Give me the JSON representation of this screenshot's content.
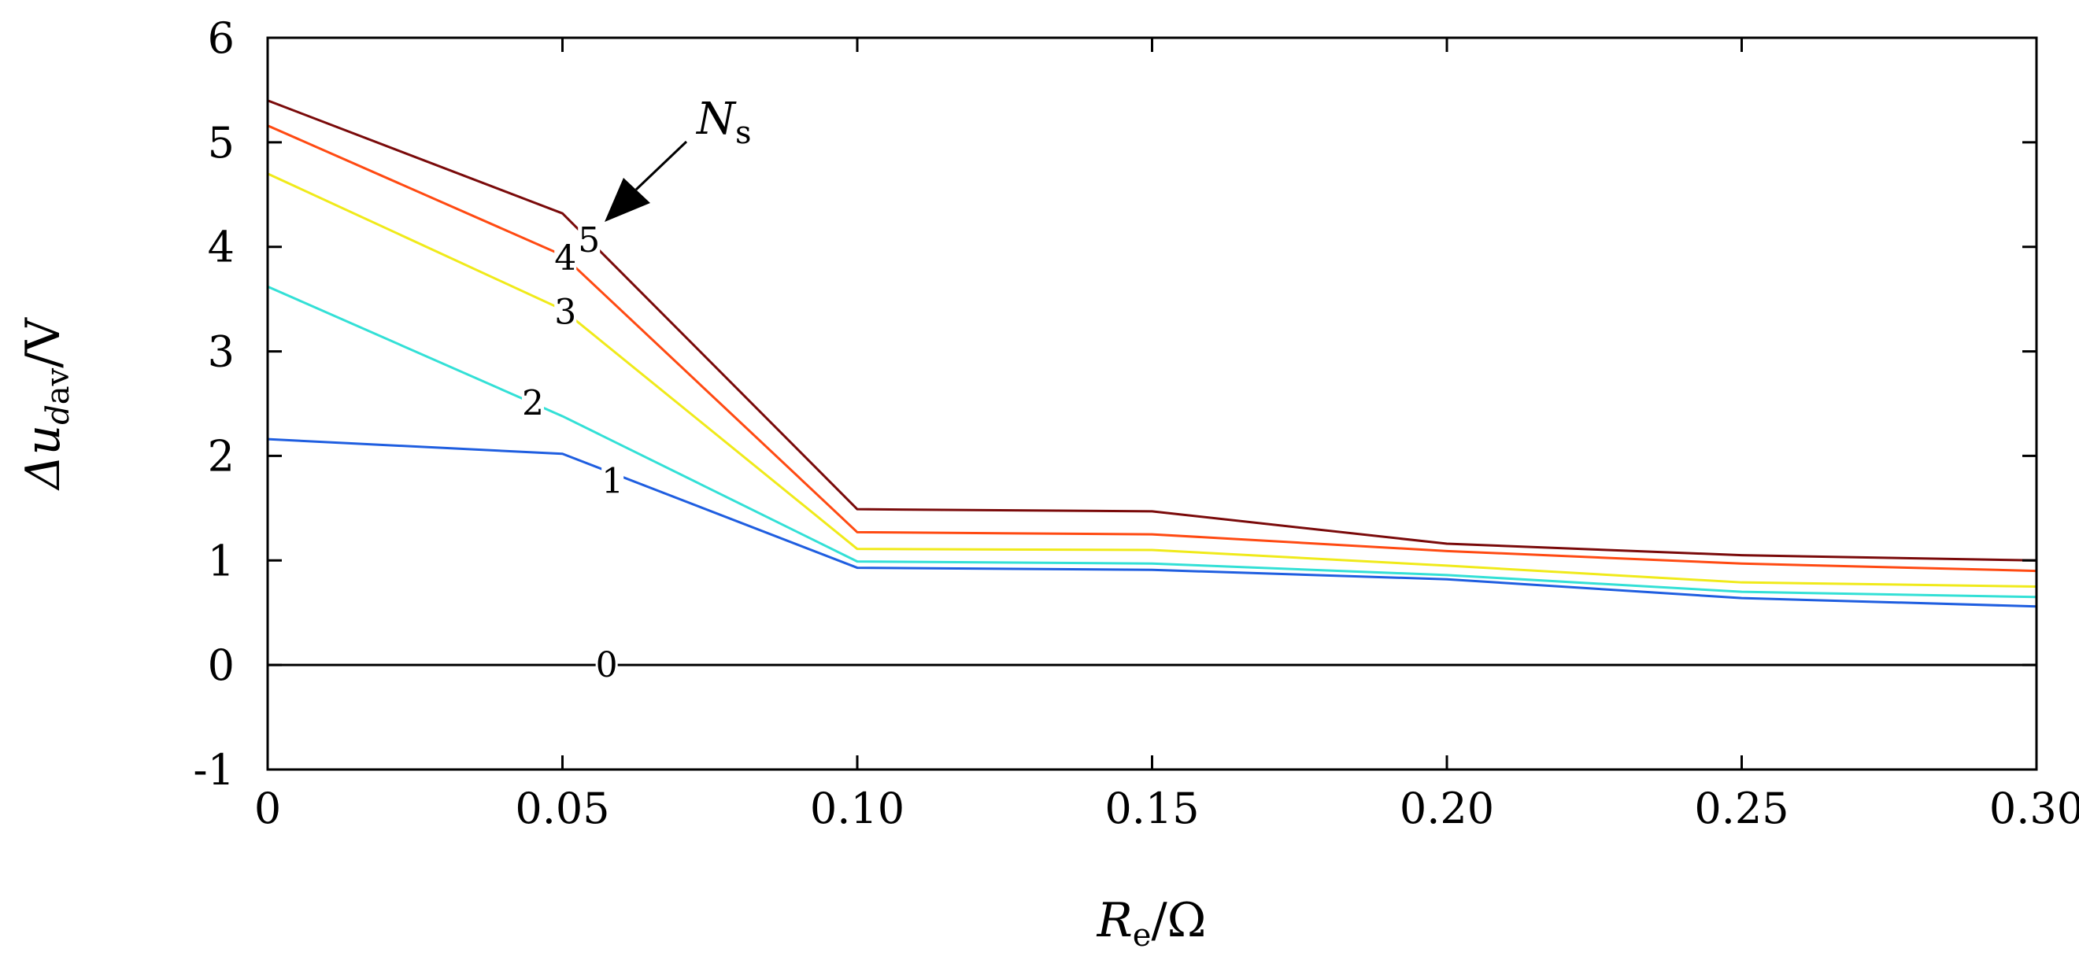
{
  "chart_data": {
    "type": "line",
    "title": "",
    "xlabel": {
      "main": "R",
      "subscript": "e",
      "unit": "/Ω"
    },
    "ylabel": {
      "prefix": "Δ",
      "main": "u",
      "subscript_italic": "d",
      "subscript": "av",
      "unit": "/V"
    },
    "xlim": [
      0,
      0.3
    ],
    "ylim": [
      -1,
      6
    ],
    "xticks": [
      0,
      0.05,
      0.1,
      0.15,
      0.2,
      0.25,
      0.3
    ],
    "xtick_labels": [
      "0",
      "0.05",
      "0.10",
      "0.15",
      "0.20",
      "0.25",
      "0.30"
    ],
    "yticks": [
      -1,
      0,
      1,
      2,
      3,
      4,
      5,
      6
    ],
    "ytick_labels": [
      "-1",
      "0",
      "1",
      "2",
      "3",
      "4",
      "5",
      "6"
    ],
    "grid": false,
    "x": [
      0,
      0.05,
      0.1,
      0.15,
      0.2,
      0.25,
      0.3
    ],
    "series": [
      {
        "name": "0",
        "label": "0",
        "color": "#000000",
        "values": [
          0,
          0,
          0,
          0,
          0,
          0,
          0
        ]
      },
      {
        "name": "1",
        "label": "1",
        "color": "#1f5ee0",
        "values": [
          2.16,
          2.02,
          0.93,
          0.91,
          0.82,
          0.64,
          0.56
        ]
      },
      {
        "name": "2",
        "label": "2",
        "color": "#33e0d6",
        "values": [
          3.62,
          2.38,
          0.99,
          0.97,
          0.86,
          0.7,
          0.65
        ]
      },
      {
        "name": "3",
        "label": "3",
        "color": "#f0ea1a",
        "values": [
          4.7,
          3.4,
          1.11,
          1.1,
          0.95,
          0.79,
          0.75
        ]
      },
      {
        "name": "4",
        "label": "4",
        "color": "#ff4a12",
        "values": [
          5.16,
          3.92,
          1.27,
          1.25,
          1.09,
          0.97,
          0.9
        ]
      },
      {
        "name": "5",
        "label": "5",
        "color": "#7a0a0a",
        "values": [
          5.4,
          4.32,
          1.49,
          1.47,
          1.16,
          1.05,
          1.0
        ]
      }
    ],
    "annotation": {
      "main": "N",
      "subscript": "s"
    }
  }
}
